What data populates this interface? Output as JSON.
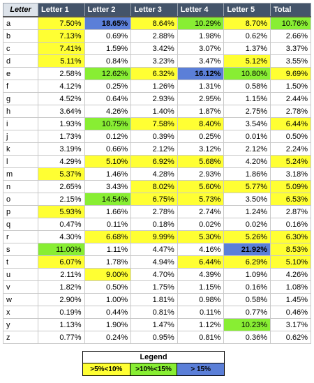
{
  "table": {
    "headers": [
      "Letter",
      "Letter 1",
      "Letter 2",
      "Letter 3",
      "Letter 4",
      "Letter 5",
      "Total"
    ],
    "rows": [
      [
        "a",
        "7.50%",
        "18.65%",
        "8.64%",
        "10.29%",
        "8.70%",
        "10.76%"
      ],
      [
        "b",
        "7.13%",
        "0.69%",
        "2.88%",
        "1.98%",
        "0.62%",
        "2.66%"
      ],
      [
        "c",
        "7.41%",
        "1.59%",
        "3.42%",
        "3.07%",
        "1.37%",
        "3.37%"
      ],
      [
        "d",
        "5.11%",
        "0.84%",
        "3.23%",
        "3.47%",
        "5.12%",
        "3.55%"
      ],
      [
        "e",
        "2.58%",
        "12.62%",
        "6.32%",
        "16.12%",
        "10.80%",
        "9.69%"
      ],
      [
        "f",
        "4.12%",
        "0.25%",
        "1.26%",
        "1.31%",
        "0.58%",
        "1.50%"
      ],
      [
        "g",
        "4.52%",
        "0.64%",
        "2.93%",
        "2.95%",
        "1.15%",
        "2.44%"
      ],
      [
        "h",
        "3.64%",
        "4.26%",
        "1.40%",
        "1.87%",
        "2.75%",
        "2.78%"
      ],
      [
        "i",
        "1.93%",
        "10.75%",
        "7.58%",
        "8.40%",
        "3.54%",
        "6.44%"
      ],
      [
        "j",
        "1.73%",
        "0.12%",
        "0.39%",
        "0.25%",
        "0.01%",
        "0.50%"
      ],
      [
        "k",
        "3.19%",
        "0.66%",
        "2.12%",
        "3.12%",
        "2.12%",
        "2.24%"
      ],
      [
        "l",
        "4.29%",
        "5.10%",
        "6.92%",
        "5.68%",
        "4.20%",
        "5.24%"
      ],
      [
        "m",
        "5.37%",
        "1.46%",
        "4.28%",
        "2.93%",
        "1.86%",
        "3.18%"
      ],
      [
        "n",
        "2.65%",
        "3.43%",
        "8.02%",
        "5.60%",
        "5.77%",
        "5.09%"
      ],
      [
        "o",
        "2.15%",
        "14.54%",
        "6.75%",
        "5.73%",
        "3.50%",
        "6.53%"
      ],
      [
        "p",
        "5.93%",
        "1.66%",
        "2.78%",
        "2.74%",
        "1.24%",
        "2.87%"
      ],
      [
        "q",
        "0.47%",
        "0.11%",
        "0.18%",
        "0.02%",
        "0.02%",
        "0.16%"
      ],
      [
        "r",
        "4.30%",
        "6.68%",
        "9.99%",
        "5.30%",
        "5.26%",
        "6.30%"
      ],
      [
        "s",
        "11.00%",
        "1.11%",
        "4.47%",
        "4.16%",
        "21.92%",
        "8.53%"
      ],
      [
        "t",
        "6.07%",
        "1.78%",
        "4.94%",
        "6.44%",
        "6.29%",
        "5.10%"
      ],
      [
        "u",
        "2.11%",
        "9.00%",
        "4.70%",
        "4.39%",
        "1.09%",
        "4.26%"
      ],
      [
        "v",
        "1.82%",
        "0.50%",
        "1.75%",
        "1.15%",
        "0.16%",
        "1.08%"
      ],
      [
        "w",
        "2.90%",
        "1.00%",
        "1.81%",
        "0.98%",
        "0.58%",
        "1.45%"
      ],
      [
        "x",
        "0.19%",
        "0.44%",
        "0.81%",
        "0.11%",
        "0.77%",
        "0.46%"
      ],
      [
        "y",
        "1.13%",
        "1.90%",
        "1.47%",
        "1.12%",
        "10.23%",
        "3.17%"
      ],
      [
        "z",
        "0.77%",
        "0.24%",
        "0.95%",
        "0.81%",
        "0.36%",
        "0.62%"
      ]
    ]
  },
  "legend": {
    "title": "Legend",
    "items": [
      {
        "label": ">5%<10%",
        "color": "#ffff33"
      },
      {
        "label": ">10%<15%",
        "color": "#88ee33"
      },
      {
        "label": "> 15%",
        "color": "#5b7fd8"
      }
    ]
  },
  "colors": {
    "header_bg": "#44546a",
    "header_letter_bg": "#dde3ea",
    "level_5_10": "#ffff33",
    "level_10_15": "#88ee33",
    "level_over_15": "#5b7fd8"
  }
}
